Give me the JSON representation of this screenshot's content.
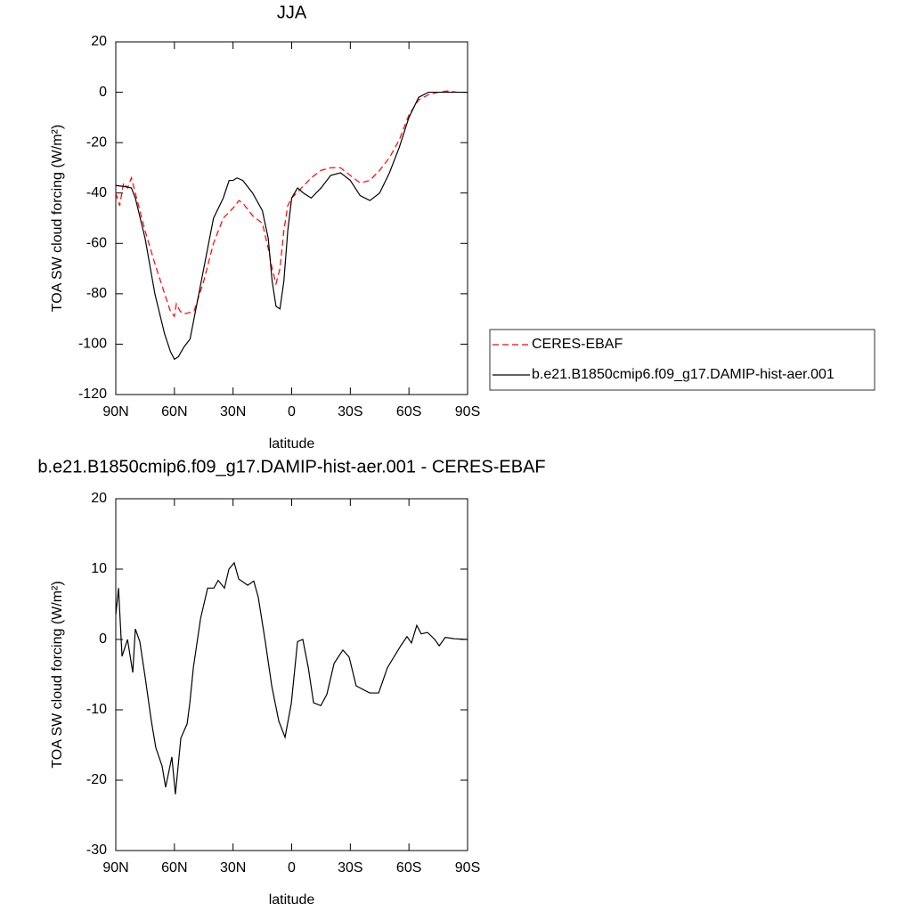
{
  "chart_data": [
    {
      "type": "line",
      "title": "JJA",
      "xlabel": "latitude",
      "ylabel": "TOA SW cloud forcing (W/m²)",
      "xlim": [
        90,
        -90
      ],
      "xticks": [
        {
          "value": 90,
          "label": "90N"
        },
        {
          "value": 60,
          "label": "60N"
        },
        {
          "value": 30,
          "label": "30N"
        },
        0,
        {
          "value": -30,
          "label": "30S"
        },
        {
          "value": -60,
          "label": "60S"
        },
        {
          "value": -90,
          "label": "90S"
        }
      ],
      "ylim": [
        -120,
        20
      ],
      "yticks": [
        -120,
        -100,
        -80,
        -60,
        -40,
        -20,
        0,
        20
      ],
      "legend": "right",
      "series": [
        {
          "name": "CERES-EBAF",
          "color": "#ff0000",
          "dash": "dashed",
          "x": [
            90,
            88,
            86,
            84,
            82,
            80,
            75,
            70,
            65,
            62,
            60,
            59,
            57,
            55,
            50,
            45,
            40,
            35,
            30,
            27,
            25,
            20,
            15,
            12,
            10,
            8,
            6,
            4,
            2,
            0,
            -5,
            -10,
            -15,
            -20,
            -25,
            -30,
            -35,
            -40,
            -45,
            -50,
            -55,
            -60,
            -65,
            -70,
            -75,
            -80,
            -85,
            -90
          ],
          "values": [
            -40,
            -45,
            -36,
            -38,
            -34,
            -40,
            -55,
            -68,
            -80,
            -87,
            -89,
            -84,
            -87,
            -88,
            -87,
            -75,
            -60,
            -50,
            -46,
            -43,
            -44,
            -49,
            -52,
            -62,
            -70,
            -76,
            -70,
            -55,
            -45,
            -42,
            -38,
            -34,
            -31,
            -30,
            -30,
            -33,
            -36,
            -35,
            -31,
            -26,
            -19,
            -9,
            -3,
            -1,
            0,
            0.5,
            0,
            0
          ]
        },
        {
          "name": "b.e21.B1850cmip6.f09_g17.DAMIP-hist-aer.001",
          "color": "#000000",
          "dash": "solid",
          "x": [
            90,
            85,
            82,
            80,
            75,
            70,
            65,
            62,
            60,
            58,
            55,
            52,
            50,
            45,
            40,
            35,
            32,
            30,
            28,
            25,
            20,
            15,
            12,
            10,
            8,
            6,
            4,
            2,
            0,
            -3,
            -6,
            -10,
            -15,
            -20,
            -25,
            -30,
            -35,
            -40,
            -45,
            -50,
            -55,
            -60,
            -65,
            -70,
            -80,
            -90
          ],
          "values": [
            -37,
            -37.5,
            -38,
            -42,
            -58,
            -80,
            -96,
            -103,
            -106,
            -105,
            -101,
            -98,
            -90,
            -70,
            -50,
            -42,
            -35,
            -35,
            -34,
            -35,
            -40,
            -47,
            -58,
            -75,
            -85,
            -86,
            -75,
            -55,
            -42,
            -38,
            -40,
            -42,
            -38,
            -33,
            -32,
            -35,
            -41,
            -43,
            -40,
            -32,
            -22,
            -10,
            -2,
            0,
            0,
            0
          ]
        }
      ]
    },
    {
      "type": "line",
      "title": "b.e21.B1850cmip6.f09_g17.DAMIP-hist-aer.001 - CERES-EBAF",
      "xlabel": "latitude",
      "ylabel": "TOA SW cloud forcing (W/m²)",
      "xlim": [
        90,
        -90
      ],
      "xticks": [
        {
          "value": 90,
          "label": "90N"
        },
        {
          "value": 60,
          "label": "60N"
        },
        {
          "value": 30,
          "label": "30N"
        },
        0,
        {
          "value": -30,
          "label": "30S"
        },
        {
          "value": -60,
          "label": "60S"
        },
        {
          "value": -90,
          "label": "90S"
        }
      ],
      "ylim": [
        -30,
        20
      ],
      "yticks": [
        -30,
        -20,
        -10,
        0,
        10,
        20
      ],
      "series": [
        {
          "color": "#000000",
          "dash": "solid",
          "x": [
            90,
            88.6,
            86.8,
            84,
            81.3,
            80,
            77.7,
            75,
            71.8,
            69.5,
            66.3,
            64.5,
            61.3,
            59.5,
            56.7,
            53.5,
            52.1,
            50.3,
            46.6,
            43,
            39.8,
            37.6,
            34.4,
            32.1,
            29.4,
            27.1,
            22.5,
            19.4,
            17.1,
            13.5,
            10.2,
            6.6,
            3.4,
            0.2,
            -3,
            -5.7,
            -8.5,
            -11.2,
            -14.9,
            -18,
            -21.7,
            -26.2,
            -29.4,
            -33,
            -39.9,
            -44.5,
            -49,
            -55.8,
            -59,
            -61.3,
            -64,
            -66.3,
            -69.5,
            -73.2,
            -75.5,
            -78.6,
            -83.2,
            -90
          ],
          "values": [
            3.5,
            7.3,
            -2.4,
            0,
            -4.7,
            1.5,
            -0.3,
            -5.3,
            -11.6,
            -15.4,
            -18,
            -21,
            -16.7,
            -22,
            -14,
            -12,
            -9,
            -4,
            3,
            7.3,
            7.3,
            8.4,
            7.3,
            10,
            10.9,
            8.6,
            7.7,
            8.3,
            6,
            -0.3,
            -6.6,
            -11.6,
            -13.9,
            -9.1,
            -0.3,
            0,
            -4,
            -9,
            -9.4,
            -7.8,
            -3.4,
            -1.5,
            -2.5,
            -6.6,
            -7.6,
            -7.6,
            -4,
            -0.9,
            0.4,
            -0.5,
            2,
            0.8,
            1,
            0,
            -0.9,
            0.3,
            0.1,
            0
          ]
        }
      ]
    }
  ]
}
